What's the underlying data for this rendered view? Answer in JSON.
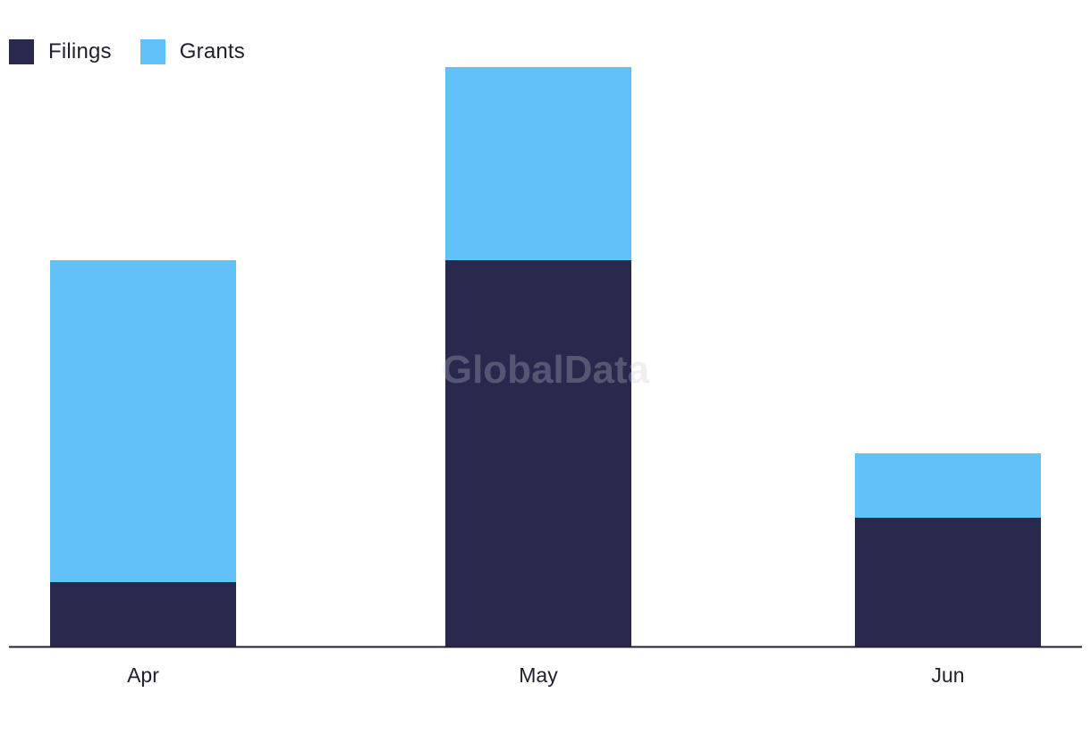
{
  "chart_data": {
    "type": "bar",
    "stacked": true,
    "categories": [
      "Apr",
      "May",
      "Jun"
    ],
    "series": [
      {
        "name": "Filings",
        "color": "#28294d",
        "values": [
          1,
          6,
          2
        ]
      },
      {
        "name": "Grants",
        "color": "#62c1f8",
        "values": [
          5,
          3,
          1
        ]
      }
    ],
    "ylim": [
      0,
      9.5
    ],
    "legend_position": "top-left",
    "grid": false
  },
  "watermark": "GlobalData"
}
